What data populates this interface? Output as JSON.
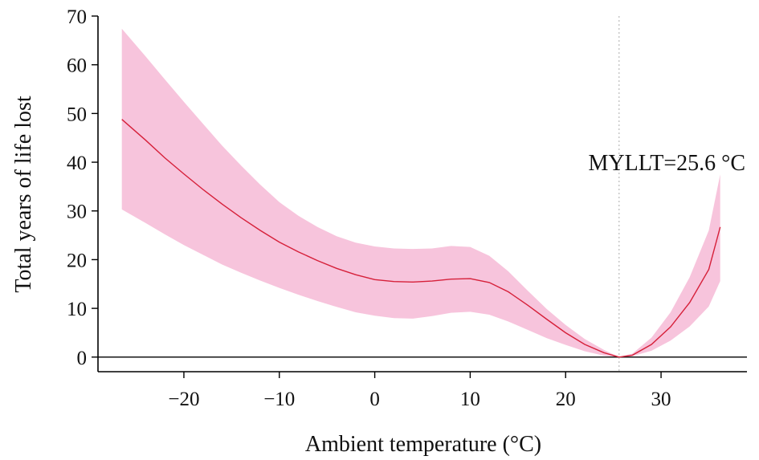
{
  "chart_data": {
    "type": "line",
    "title": "",
    "xlabel": "Ambient temperature (°C)",
    "ylabel": "Total years of life lost",
    "xlim": [
      -29,
      39
    ],
    "ylim": [
      -3,
      70
    ],
    "x_ticks": [
      -20,
      -10,
      0,
      10,
      20,
      30
    ],
    "x_tick_labels": [
      "−20",
      "−10",
      "0",
      "10",
      "20",
      "30"
    ],
    "y_ticks": [
      0,
      10,
      20,
      30,
      40,
      50,
      60,
      70
    ],
    "y_tick_labels": [
      "0",
      "10",
      "20",
      "30",
      "40",
      "50",
      "60",
      "70"
    ],
    "series": [
      {
        "color": "#d6203a",
        "x": [
          -26.5,
          -24,
          -22,
          -20,
          -18,
          -16,
          -14,
          -12,
          -10,
          -8,
          -6,
          -4,
          -2,
          0,
          2,
          4,
          6,
          8,
          10,
          12,
          14,
          16,
          18,
          20,
          22,
          24,
          25.6,
          27,
          29,
          31,
          33,
          35,
          36.2
        ],
        "y": [
          48.8,
          44.5,
          40.9,
          37.6,
          34.4,
          31.4,
          28.6,
          26.0,
          23.6,
          21.6,
          19.8,
          18.2,
          16.9,
          15.9,
          15.5,
          15.4,
          15.6,
          16.0,
          16.1,
          15.3,
          13.4,
          10.7,
          7.8,
          5.0,
          2.6,
          0.9,
          0.0,
          0.4,
          2.6,
          6.2,
          11.2,
          18.0,
          26.7
        ]
      }
    ],
    "confidence_band": {
      "color": "#f7c4dc",
      "x": [
        -26.5,
        -24,
        -22,
        -20,
        -18,
        -16,
        -14,
        -12,
        -10,
        -8,
        -6,
        -4,
        -2,
        0,
        2,
        4,
        6,
        8,
        10,
        12,
        14,
        16,
        18,
        20,
        22,
        24,
        25.6,
        27,
        29,
        31,
        33,
        35,
        36.2
      ],
      "upper": [
        67.4,
        61.7,
        57.0,
        52.4,
        47.9,
        43.4,
        39.3,
        35.4,
        31.8,
        29.0,
        26.7,
        24.8,
        23.5,
        22.7,
        22.3,
        22.2,
        22.3,
        22.8,
        22.6,
        20.8,
        17.6,
        13.7,
        9.9,
        6.6,
        3.7,
        1.5,
        0.0,
        0.7,
        4.0,
        9.2,
        16.4,
        26.0,
        37.5
      ],
      "lower": [
        30.3,
        27.5,
        25.2,
        23.0,
        21.0,
        19.0,
        17.3,
        15.7,
        14.2,
        12.8,
        11.5,
        10.3,
        9.2,
        8.5,
        8.0,
        7.9,
        8.4,
        9.1,
        9.3,
        8.7,
        7.3,
        5.6,
        3.9,
        2.5,
        1.2,
        0.3,
        0.0,
        0.2,
        1.3,
        3.4,
        6.3,
        10.4,
        15.6
      ]
    },
    "reference_line": {
      "x": 25.6,
      "style": "dotted",
      "color": "#bbbbbb"
    },
    "zero_line": {
      "y": 0,
      "color": "#000000"
    },
    "annotations": [
      {
        "text": "MYLLT=25.6 °C",
        "x": 25.6,
        "y": 40
      }
    ],
    "grid": false,
    "legend": "none"
  }
}
